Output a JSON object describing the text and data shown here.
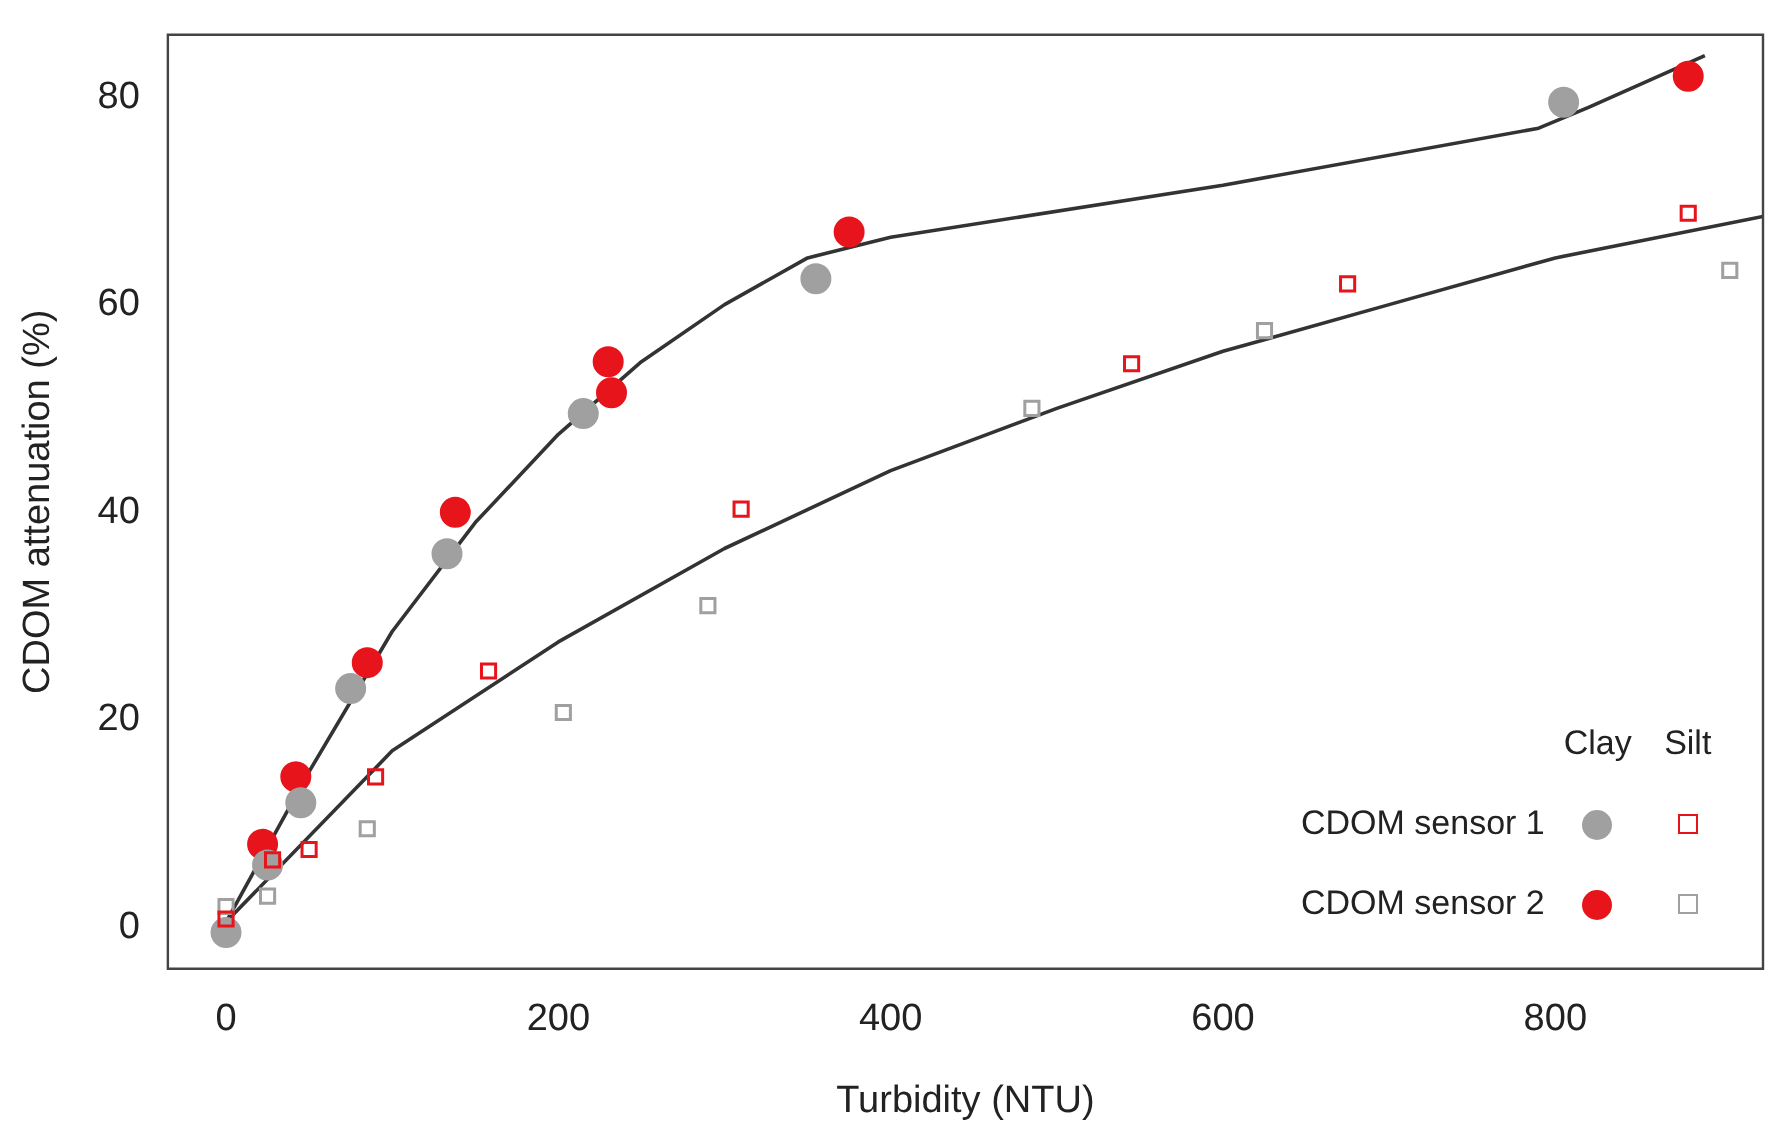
{
  "chart_data": {
    "type": "scatter",
    "xlabel": "Turbidity (NTU)",
    "ylabel": "CDOM attenuation (%)",
    "xlim": [
      -35,
      925
    ],
    "ylim": [
      -4,
      86
    ],
    "xticks": [
      0,
      200,
      400,
      600,
      800
    ],
    "yticks": [
      0,
      20,
      40,
      60,
      80
    ],
    "grid": false,
    "legend": "bottom right",
    "annotations": [
      "Clay",
      "Silt"
    ],
    "series": [
      {
        "name": "CDOM sensor 1",
        "color": "#a0a0a0",
        "marker": "circle",
        "x": [
          0,
          25,
          45,
          75,
          133,
          215,
          355,
          805
        ],
        "values": [
          -0.5,
          6,
          12,
          23,
          36,
          49.5,
          62.5,
          79.5
        ]
      },
      {
        "name": "CDOM sensor 2",
        "color": "#e8141c",
        "marker": "circle",
        "x": [
          22,
          42,
          85,
          138,
          230,
          232,
          375,
          880
        ],
        "values": [
          8,
          14.5,
          25.5,
          40,
          54.5,
          51.5,
          67,
          82
        ]
      },
      {
        "color": "#e8141c",
        "marker": "square",
        "x": [
          0,
          28,
          50,
          90,
          158,
          310,
          545,
          675,
          880
        ],
        "values": [
          0.8,
          6.5,
          7.5,
          14.5,
          24.7,
          40.3,
          54.3,
          62,
          68.8
        ]
      },
      {
        "color": "#a0a0a0",
        "marker": "square",
        "x": [
          0,
          25,
          85,
          203,
          290,
          485,
          625,
          905
        ],
        "values": [
          2,
          3,
          9.5,
          20.7,
          31,
          50,
          57.5,
          63.3
        ]
      },
      {
        "type": "line",
        "color": "#333333",
        "marker": "none",
        "x": [
          0,
          50,
          100,
          150,
          200,
          250,
          300,
          350,
          400,
          600,
          790,
          820,
          890
        ],
        "values": [
          0.5,
          15,
          28.5,
          39,
          47.5,
          54.5,
          60,
          64.5,
          66.5,
          71.5,
          77,
          79,
          84
        ]
      },
      {
        "type": "line",
        "color": "#333333",
        "marker": "none",
        "x": [
          0,
          100,
          200,
          300,
          400,
          500,
          600,
          700,
          800,
          925
        ],
        "values": [
          0.5,
          17,
          27.5,
          36.5,
          44,
          50,
          55.5,
          60,
          64.5,
          68.5
        ]
      }
    ]
  }
}
